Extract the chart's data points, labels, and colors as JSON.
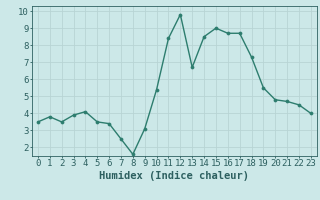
{
  "x": [
    0,
    1,
    2,
    3,
    4,
    5,
    6,
    7,
    8,
    9,
    10,
    11,
    12,
    13,
    14,
    15,
    16,
    17,
    18,
    19,
    20,
    21,
    22,
    23
  ],
  "y": [
    3.5,
    3.8,
    3.5,
    3.9,
    4.1,
    3.5,
    3.4,
    2.5,
    1.6,
    3.1,
    5.4,
    8.4,
    9.8,
    6.7,
    8.5,
    9.0,
    8.7,
    8.7,
    7.3,
    5.5,
    4.8,
    4.7,
    4.5,
    4.0
  ],
  "line_color": "#2d7d6e",
  "bg_color": "#cce8e8",
  "grid_color": "#b8d4d4",
  "xlabel": "Humidex (Indice chaleur)",
  "ylim": [
    1.5,
    10.3
  ],
  "xlim": [
    -0.5,
    23.5
  ],
  "yticks": [
    2,
    3,
    4,
    5,
    6,
    7,
    8,
    9,
    10
  ],
  "xticks": [
    0,
    1,
    2,
    3,
    4,
    5,
    6,
    7,
    8,
    9,
    10,
    11,
    12,
    13,
    14,
    15,
    16,
    17,
    18,
    19,
    20,
    21,
    22,
    23
  ],
  "marker_size": 2.2,
  "line_width": 1.0,
  "text_color": "#2d6060",
  "xlabel_fontsize": 7.5,
  "tick_fontsize": 6.5
}
